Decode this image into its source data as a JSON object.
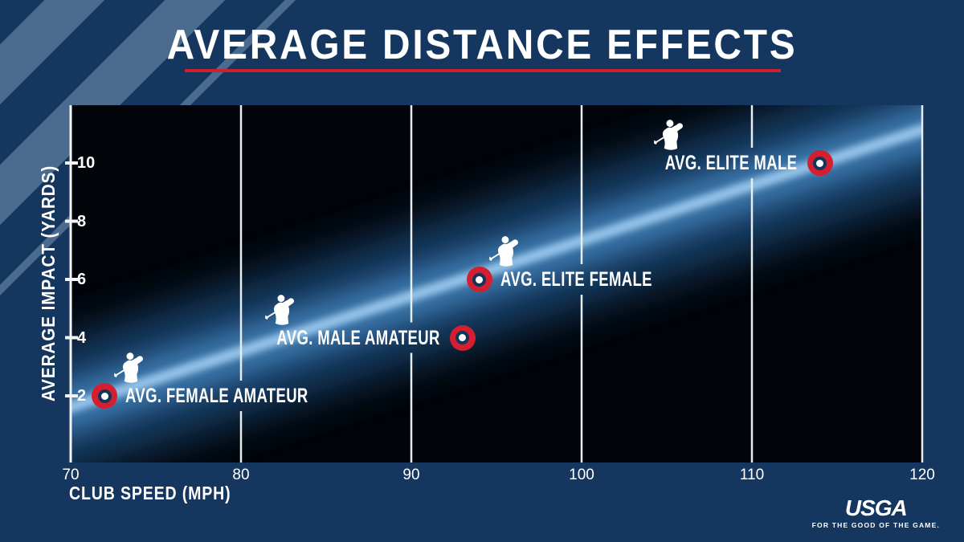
{
  "chart_data": {
    "type": "scatter",
    "title": "AVERAGE DISTANCE EFFECTS",
    "xlabel": "CLUB SPEED (MPH)",
    "ylabel": "AVERAGE IMPACT (YARDS)",
    "xlim": [
      70,
      120
    ],
    "ylim": [
      0,
      12
    ],
    "x_ticks": [
      70,
      80,
      90,
      100,
      110,
      120
    ],
    "y_ticks": [
      2,
      4,
      6,
      8,
      10
    ],
    "grid": "vertical-gridlines-only",
    "legend": "none",
    "marker_style": "red ring with navy center and white dot",
    "point_icon": "golfer-swing silhouette",
    "points": [
      {
        "label": "AVG. FEMALE AMATEUR",
        "x": 72,
        "y": 2,
        "label_side": "right"
      },
      {
        "label": "AVG. MALE AMATEUR",
        "x": 93,
        "y": 4,
        "label_side": "left"
      },
      {
        "label": "AVG. ELITE FEMALE",
        "x": 94,
        "y": 6,
        "label_side": "right"
      },
      {
        "label": "AVG. ELITE MALE",
        "x": 114,
        "y": 10,
        "label_side": "left"
      }
    ]
  },
  "branding": {
    "logo": "USGA",
    "tagline": "FOR THE GOOD OF THE GAME."
  },
  "colors": {
    "background_navy": "#14365F",
    "stripe_light": "#4A6B8D",
    "accent_red": "#D0202F",
    "plot_black": "#010409",
    "beam_core_blue": "#9ECBEF",
    "beam_mid_blue": "#3C78AD",
    "marker_red": "#D41F30",
    "marker_navy": "#16335A",
    "text_white": "#FFFFFF"
  }
}
